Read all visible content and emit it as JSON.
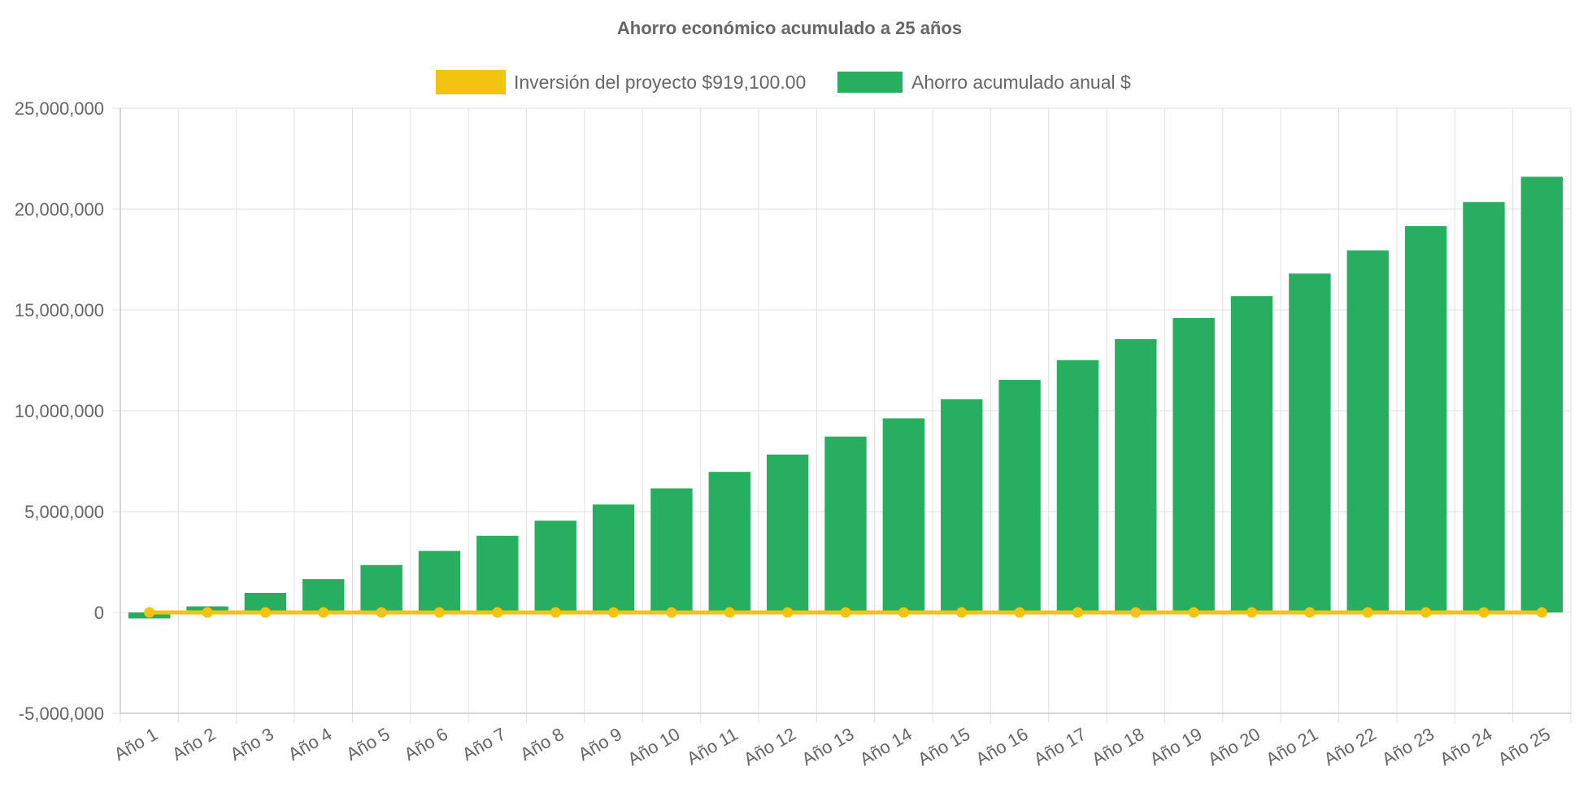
{
  "chart_data": {
    "type": "bar",
    "title": "Ahorro económico acumulado a 25 años",
    "categories": [
      "Año 1",
      "Año 2",
      "Año 3",
      "Año 4",
      "Año 5",
      "Año 6",
      "Año 7",
      "Año 8",
      "Año 9",
      "Año 10",
      "Año 11",
      "Año 12",
      "Año 13",
      "Año 14",
      "Año 15",
      "Año 16",
      "Año 17",
      "Año 18",
      "Año 19",
      "Año 20",
      "Año 21",
      "Año 22",
      "Año 23",
      "Año 24",
      "Año 25"
    ],
    "ylim": [
      -5000000,
      25000000
    ],
    "yticks": [
      -5000000,
      0,
      5000000,
      10000000,
      15000000,
      20000000,
      25000000
    ],
    "ytick_labels": [
      "-5,000,000",
      "0",
      "5,000,000",
      "10,000,000",
      "15,000,000",
      "20,000,000",
      "25,000,000"
    ],
    "grid": true,
    "legend_position": "top-center",
    "series": [
      {
        "name": "Inversión del proyecto $919,100.00",
        "type": "line",
        "color": "#f2c40f",
        "values": [
          0,
          0,
          0,
          0,
          0,
          0,
          0,
          0,
          0,
          0,
          0,
          0,
          0,
          0,
          0,
          0,
          0,
          0,
          0,
          0,
          0,
          0,
          0,
          0,
          0
        ]
      },
      {
        "name": "Ahorro acumulado anual $",
        "type": "bar",
        "color": "#27ae60",
        "values": [
          -300000,
          300000,
          970000,
          1650000,
          2350000,
          3050000,
          3800000,
          4550000,
          5350000,
          6150000,
          6970000,
          7830000,
          8720000,
          9620000,
          10570000,
          11530000,
          12510000,
          13550000,
          14600000,
          15680000,
          16800000,
          17950000,
          19150000,
          20350000,
          21600000
        ]
      }
    ]
  }
}
